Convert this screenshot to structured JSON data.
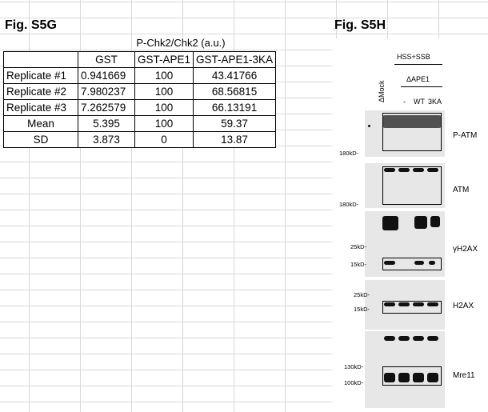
{
  "fig_s5g": {
    "title": "Fig. S5G",
    "caption": "P-Chk2/Chk2 (a.u.)",
    "headers": [
      "",
      "GST",
      "GST-APE1",
      "GST-APE1-3KA"
    ],
    "rows": [
      [
        "Replicate #1",
        "0.941669",
        "100",
        "43.41766"
      ],
      [
        "Replicate #2",
        "7.980237",
        "100",
        "68.56815"
      ],
      [
        "Replicate #3",
        "7.262579",
        "100",
        "66.13191"
      ],
      [
        "Mean",
        "5.395",
        "100",
        "59.37"
      ],
      [
        "SD",
        "3.873",
        "0",
        "13.87"
      ]
    ]
  },
  "fig_s5h": {
    "title": "Fig. S5H",
    "top_label": "HSS+SSB",
    "mock_label": "ΔMock",
    "ape1_label": "ΔAPE1",
    "lane_dash": "-",
    "lane_wt": "WT",
    "lane_3ka": "3KA",
    "panels": {
      "p_atm": {
        "label": "P-ATM",
        "mw1": "180kD-"
      },
      "atm": {
        "label": "ATM",
        "mw1": "180kD-"
      },
      "gh2ax": {
        "label": "γH2AX",
        "mw1": "25kD-",
        "mw2": "15kD-"
      },
      "h2ax": {
        "label": "H2AX",
        "mw1": "25kD-",
        "mw2": "15kD-"
      },
      "mre11": {
        "label": "Mre11",
        "mw1": "130kD-",
        "mw2": "100kD-"
      }
    }
  },
  "colors": {
    "grid": "#d9d9d9",
    "blot_bg": "#e7e7e7",
    "band": "#111111"
  }
}
